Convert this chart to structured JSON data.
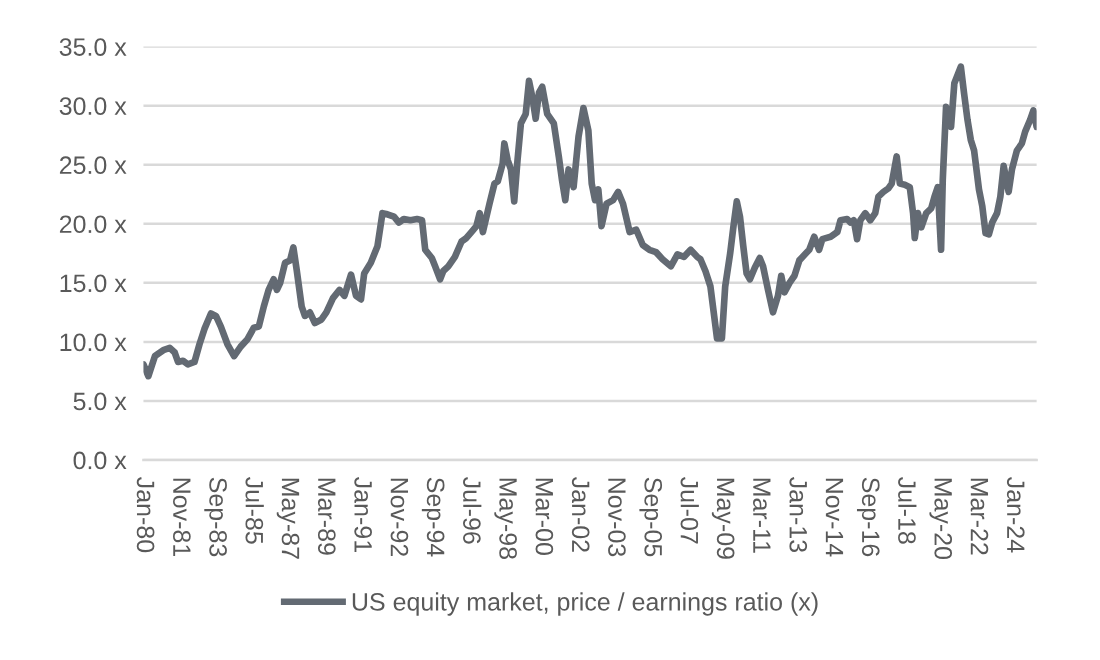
{
  "chart_data": {
    "type": "line",
    "x": [
      "1980-01",
      "1980-04",
      "1980-08",
      "1981-01",
      "1981-05",
      "1981-08",
      "1981-10",
      "1982-01",
      "1982-04",
      "1982-08",
      "1982-11",
      "1983-02",
      "1983-06",
      "1983-09",
      "1983-12",
      "1984-04",
      "1984-08",
      "1984-12",
      "1985-04",
      "1985-08",
      "1985-11",
      "1986-02",
      "1986-05",
      "1986-08",
      "1986-10",
      "1986-12",
      "1987-03",
      "1987-06",
      "1987-08",
      "1987-10",
      "1988-01",
      "1988-03",
      "1988-06",
      "1988-09",
      "1989-01",
      "1989-04",
      "1989-08",
      "1989-12",
      "1990-03",
      "1990-07",
      "1990-10",
      "1991-01",
      "1991-03",
      "1991-07",
      "1991-11",
      "1992-02",
      "1992-05",
      "1992-09",
      "1992-12",
      "1993-03",
      "1993-07",
      "1993-11",
      "1994-02",
      "1994-04",
      "1994-08",
      "1994-10",
      "1995-01",
      "1995-03",
      "1995-06",
      "1995-10",
      "1996-02",
      "1996-05",
      "1996-08",
      "1996-11",
      "1997-01",
      "1997-03",
      "1997-07",
      "1997-10",
      "1997-12",
      "1998-03",
      "1998-04",
      "1998-06",
      "1998-08",
      "1998-10",
      "1998-12",
      "1999-02",
      "1999-05",
      "1999-07",
      "1999-09",
      "1999-11",
      "2000-01",
      "2000-03",
      "2000-06",
      "2000-08",
      "2000-10",
      "2001-01",
      "2001-03",
      "2001-05",
      "2001-07",
      "2001-10",
      "2002-01",
      "2002-04",
      "2002-07",
      "2002-09",
      "2002-11",
      "2003-01",
      "2003-03",
      "2003-06",
      "2003-10",
      "2004-01",
      "2004-04",
      "2004-08",
      "2004-12",
      "2005-04",
      "2005-08",
      "2005-12",
      "2006-04",
      "2006-09",
      "2007-01",
      "2007-05",
      "2007-09",
      "2008-01",
      "2008-03",
      "2008-06",
      "2008-09",
      "2008-11",
      "2009-01",
      "2009-04",
      "2009-06",
      "2009-09",
      "2009-11",
      "2010-01",
      "2010-03",
      "2010-05",
      "2010-07",
      "2010-09",
      "2010-12",
      "2011-03",
      "2011-05",
      "2011-08",
      "2011-11",
      "2012-02",
      "2012-04",
      "2012-06",
      "2012-09",
      "2012-12",
      "2013-03",
      "2013-07",
      "2013-09",
      "2013-12",
      "2014-03",
      "2014-05",
      "2014-10",
      "2015-02",
      "2015-04",
      "2015-08",
      "2015-10",
      "2015-12",
      "2016-02",
      "2016-04",
      "2016-07",
      "2016-10",
      "2017-01",
      "2017-03",
      "2017-06",
      "2017-09",
      "2017-11",
      "2018-02",
      "2018-04",
      "2018-07",
      "2018-10",
      "2018-12",
      "2019-01",
      "2019-03",
      "2019-05",
      "2019-08",
      "2019-11",
      "2020-01",
      "2020-03",
      "2020-05",
      "2020-06",
      "2020-08",
      "2020-11",
      "2021-01",
      "2021-05",
      "2021-07",
      "2021-09",
      "2021-11",
      "2022-01",
      "2022-04",
      "2022-06",
      "2022-08",
      "2022-10",
      "2022-12",
      "2023-03",
      "2023-05",
      "2023-07",
      "2023-10",
      "2023-12",
      "2024-03",
      "2024-06",
      "2024-08",
      "2024-11",
      "2025-01",
      "2025-03"
    ],
    "series": [
      {
        "name": "US equity market, price / earnings ratio (x)",
        "color": "#636a73",
        "values": [
          8.1,
          7.1,
          8.8,
          9.3,
          9.5,
          9.1,
          8.3,
          8.4,
          8.1,
          8.3,
          9.8,
          11.1,
          12.4,
          12.2,
          11.3,
          9.8,
          8.8,
          9.6,
          10.2,
          11.2,
          11.3,
          13.0,
          14.4,
          15.3,
          14.4,
          15.0,
          16.7,
          16.9,
          18.0,
          16.1,
          13.0,
          12.2,
          12.5,
          11.6,
          11.9,
          12.5,
          13.7,
          14.4,
          13.9,
          15.7,
          13.9,
          13.6,
          15.8,
          16.7,
          18.1,
          20.9,
          20.8,
          20.6,
          20.1,
          20.4,
          20.3,
          20.4,
          20.3,
          17.8,
          17.1,
          16.4,
          15.3,
          16.0,
          16.4,
          17.2,
          18.5,
          18.8,
          19.3,
          19.8,
          20.9,
          19.3,
          21.7,
          23.4,
          23.6,
          25.1,
          26.8,
          25.4,
          24.6,
          21.9,
          25.4,
          28.5,
          29.3,
          32.1,
          30.7,
          28.9,
          31.1,
          31.6,
          29.3,
          28.9,
          28.5,
          25.7,
          23.7,
          22.0,
          24.6,
          23.1,
          27.4,
          29.8,
          27.9,
          23.4,
          22.0,
          22.9,
          19.8,
          21.7,
          22.0,
          22.7,
          21.7,
          19.3,
          19.5,
          18.2,
          17.8,
          17.6,
          17.0,
          16.4,
          17.4,
          17.2,
          17.8,
          17.2,
          17.0,
          16.0,
          14.7,
          12.5,
          10.3,
          10.3,
          14.7,
          17.5,
          19.8,
          21.9,
          20.6,
          18.1,
          15.8,
          15.3,
          16.3,
          17.1,
          16.4,
          14.4,
          12.5,
          13.9,
          15.6,
          14.2,
          15.0,
          15.6,
          16.9,
          17.5,
          17.8,
          18.9,
          17.8,
          18.7,
          18.9,
          19.3,
          20.3,
          20.4,
          20.1,
          20.3,
          18.7,
          20.3,
          20.9,
          20.3,
          20.9,
          22.3,
          22.7,
          23.0,
          23.4,
          25.7,
          23.4,
          23.3,
          23.1,
          20.9,
          18.8,
          20.9,
          19.7,
          20.9,
          21.3,
          22.3,
          23.1,
          17.8,
          23.7,
          29.9,
          28.2,
          31.9,
          33.3,
          31.0,
          28.8,
          27.1,
          26.2,
          22.9,
          21.5,
          19.2,
          19.1,
          20.1,
          20.9,
          22.3,
          24.9,
          22.7,
          24.6,
          26.2,
          26.8,
          27.8,
          28.8,
          29.6,
          28.2
        ]
      }
    ],
    "xlim": [
      "1980-01",
      "2025-03"
    ],
    "xticks": [
      {
        "value": "1980-01",
        "label": "Jan-80"
      },
      {
        "value": "1981-11",
        "label": "Nov-81"
      },
      {
        "value": "1983-09",
        "label": "Sep-83"
      },
      {
        "value": "1985-07",
        "label": "Jul-85"
      },
      {
        "value": "1987-05",
        "label": "May-87"
      },
      {
        "value": "1989-03",
        "label": "Mar-89"
      },
      {
        "value": "1991-01",
        "label": "Jan-91"
      },
      {
        "value": "1992-11",
        "label": "Nov-92"
      },
      {
        "value": "1994-09",
        "label": "Sep-94"
      },
      {
        "value": "1996-07",
        "label": "Jul-96"
      },
      {
        "value": "1998-05",
        "label": "May-98"
      },
      {
        "value": "2000-03",
        "label": "Mar-00"
      },
      {
        "value": "2002-01",
        "label": "Jan-02"
      },
      {
        "value": "2003-11",
        "label": "Nov-03"
      },
      {
        "value": "2005-09",
        "label": "Sep-05"
      },
      {
        "value": "2007-07",
        "label": "Jul-07"
      },
      {
        "value": "2009-05",
        "label": "May-09"
      },
      {
        "value": "2011-03",
        "label": "Mar-11"
      },
      {
        "value": "2013-01",
        "label": "Jan-13"
      },
      {
        "value": "2014-11",
        "label": "Nov-14"
      },
      {
        "value": "2016-09",
        "label": "Sep-16"
      },
      {
        "value": "2018-07",
        "label": "Jul-18"
      },
      {
        "value": "2020-05",
        "label": "May-20"
      },
      {
        "value": "2022-03",
        "label": "Mar-22"
      },
      {
        "value": "2024-01",
        "label": "Jan-24"
      }
    ],
    "ylim": [
      0,
      35
    ],
    "yticks": [
      {
        "value": 0,
        "label": "0.0 x"
      },
      {
        "value": 5,
        "label": "5.0 x"
      },
      {
        "value": 10,
        "label": "10.0 x"
      },
      {
        "value": 15,
        "label": "15.0 x"
      },
      {
        "value": 20,
        "label": "20.0 x"
      },
      {
        "value": 25,
        "label": "25.0 x"
      },
      {
        "value": 30,
        "label": "30.0 x"
      },
      {
        "value": 35,
        "label": "35.0 x"
      }
    ],
    "grid": "y",
    "legend": "bottom"
  }
}
